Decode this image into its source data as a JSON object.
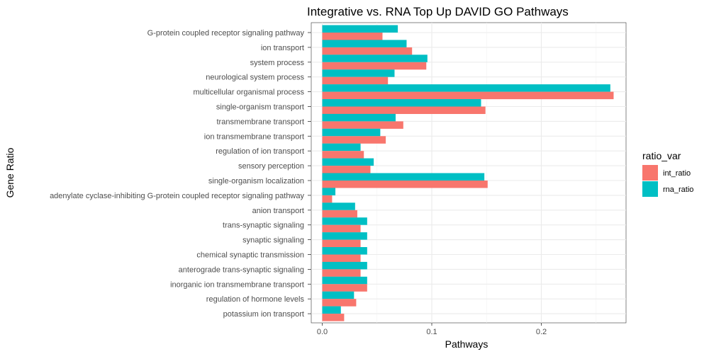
{
  "chart_data": {
    "type": "bar",
    "orientation": "horizontal",
    "title": "Integrative vs. RNA Top Up DAVID GO Pathways",
    "xlabel": "Pathways",
    "ylabel": "Gene Ratio",
    "xlim": [
      0,
      0.27
    ],
    "xticks": [
      "0.0",
      "0.1",
      "0.2"
    ],
    "grid": true,
    "legend_title": "ratio_var",
    "legend_position": "right",
    "categories": [
      "G-protein coupled receptor signaling pathway",
      "ion transport",
      "system process",
      "neurological system process",
      "multicellular organismal process",
      "single-organism transport",
      "transmembrane transport",
      "ion transmembrane transport",
      "regulation of ion transport",
      "sensory perception",
      "single-organism localization",
      "adenylate cyclase-inhibiting G-protein coupled receptor signaling pathway",
      "anion transport",
      "trans-synaptic signaling",
      "synaptic signaling",
      "chemical synaptic transmission",
      "anterograde trans-synaptic signaling",
      "inorganic ion transmembrane transport",
      "regulation of hormone levels",
      "potassium ion transport"
    ],
    "series": [
      {
        "name": "int_ratio",
        "color": "#F8766D",
        "values": [
          0.055,
          0.082,
          0.095,
          0.06,
          0.266,
          0.149,
          0.074,
          0.058,
          0.038,
          0.044,
          0.151,
          0.009,
          0.032,
          0.035,
          0.035,
          0.035,
          0.035,
          0.041,
          0.031,
          0.02
        ]
      },
      {
        "name": "rna_ratio",
        "color": "#00BFC4",
        "values": [
          0.069,
          0.077,
          0.096,
          0.066,
          0.263,
          0.145,
          0.067,
          0.053,
          0.035,
          0.047,
          0.148,
          0.012,
          0.03,
          0.041,
          0.041,
          0.041,
          0.041,
          0.041,
          0.029,
          0.017
        ]
      }
    ]
  }
}
